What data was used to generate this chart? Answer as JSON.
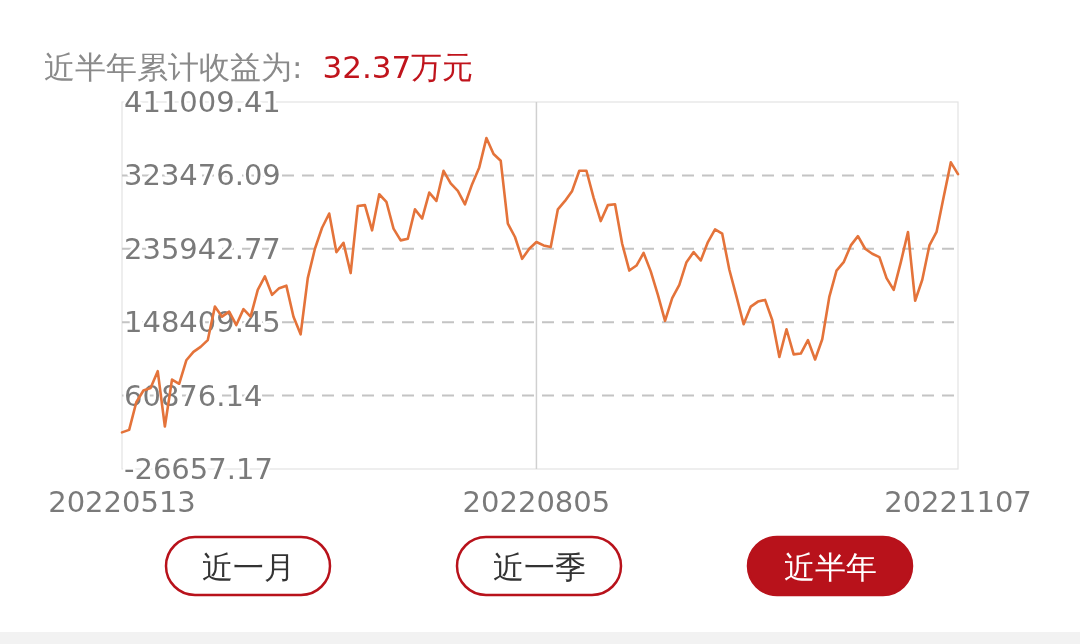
{
  "chart_data": {
    "type": "line",
    "title": "近半年累计收益为:",
    "subtitle": "32.37万元",
    "categories": [
      "20220513",
      null,
      null,
      null,
      null,
      null,
      null,
      null,
      null,
      null,
      null,
      null,
      null,
      null,
      null,
      null,
      null,
      null,
      null,
      null,
      null,
      null,
      null,
      null,
      null,
      null,
      null,
      null,
      null,
      null,
      null,
      null,
      null,
      null,
      null,
      null,
      null,
      null,
      null,
      null,
      null,
      null,
      null,
      null,
      null,
      null,
      null,
      null,
      null,
      null,
      null,
      null,
      null,
      null,
      null,
      null,
      null,
      null,
      "20220805",
      null,
      null,
      null,
      null,
      null,
      null,
      null,
      null,
      null,
      null,
      null,
      null,
      null,
      null,
      null,
      null,
      null,
      null,
      null,
      null,
      null,
      null,
      null,
      null,
      null,
      null,
      null,
      null,
      null,
      null,
      null,
      null,
      null,
      null,
      null,
      null,
      null,
      null,
      null,
      null,
      null,
      null,
      null,
      null,
      null,
      null,
      null,
      null,
      null,
      null,
      null,
      null,
      null,
      null,
      null,
      null,
      null,
      null,
      "20221107"
    ],
    "series": [
      {
        "color": "#e4733a",
        "values": [
          17000,
          20000,
          53000,
          67000,
          70000,
          90000,
          24000,
          80000,
          75000,
          103000,
          113000,
          119000,
          127000,
          167000,
          155000,
          161000,
          145000,
          164000,
          155000,
          187000,
          203000,
          181000,
          189000,
          192000,
          155000,
          134000,
          201000,
          236000,
          261000,
          278000,
          232000,
          243000,
          207000,
          287000,
          288000,
          258000,
          301000,
          292000,
          260000,
          246000,
          248000,
          283000,
          272000,
          303000,
          293000,
          329000,
          314000,
          305000,
          289000,
          313000,
          333000,
          368000,
          349000,
          341000,
          266000,
          250000,
          224000,
          236000,
          244000,
          240000,
          238000,
          283000,
          293000,
          305000,
          329000,
          329000,
          297000,
          269000,
          288000,
          289000,
          242000,
          210000,
          216000,
          231000,
          209000,
          181000,
          150000,
          177000,
          193000,
          220000,
          232000,
          222000,
          244000,
          259000,
          254000,
          211000,
          179000,
          146000,
          167000,
          173000,
          175000,
          151000,
          107000,
          140000,
          110000,
          111000,
          127000,
          104000,
          128000,
          179000,
          210000,
          220000,
          240000,
          251000,
          236000,
          230000,
          226000,
          201000,
          187000,
          220000,
          256000,
          174000,
          199000,
          240000,
          256000,
          298000,
          339000,
          325000
        ]
      }
    ],
    "ylim": [
      -26657.17,
      411009.41
    ],
    "yticks": [
      -26657.17,
      60876.14,
      148409.45,
      235942.77,
      323476.09,
      411009.41
    ],
    "grid": "y",
    "line_style": "solid",
    "marker": "none",
    "ref_lines": [
      {
        "axis": "x",
        "value": "20220805",
        "color": "#d0d0d0"
      }
    ],
    "annotations": [
      "近一月",
      "近一季",
      "近半年"
    ]
  }
}
